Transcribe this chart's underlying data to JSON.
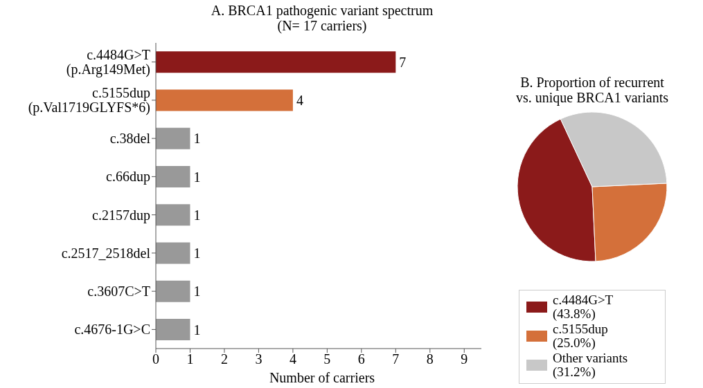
{
  "chart_data": [
    {
      "type": "bar",
      "orientation": "horizontal",
      "title": "A. BRCA1 pathogenic variant spectrum\n(N= 17 carriers)",
      "xlabel": "Number of carriers",
      "categories": [
        "c.4484G>T\n(p.Arg149Met)",
        "c.5155dup\n(p.Val1719GLYFS*6)",
        "c.38del",
        "c.66dup",
        "c.2157dup",
        "c.2517_2518del",
        "c.3607C>T",
        "c.4676-1G>C"
      ],
      "values": [
        7,
        4,
        1,
        1,
        1,
        1,
        1,
        1
      ],
      "colors": [
        "#8b1a1a",
        "#d4703a",
        "#999999",
        "#999999",
        "#999999",
        "#999999",
        "#999999",
        "#999999"
      ],
      "xlim": [
        0,
        9.5
      ],
      "xticks": [
        0,
        1,
        2,
        3,
        4,
        5,
        6,
        7,
        8,
        9
      ],
      "data_labels": true
    },
    {
      "type": "pie",
      "title": "B.  Proportion of recurrent\nvs. unique BRCA1 variants",
      "categories": [
        "c.4484G>T\n(43.8%)",
        "c.5155dup\n(25.0%)",
        "Other variants\n(31.2%)"
      ],
      "values": [
        43.8,
        25.0,
        31.2
      ],
      "colors": [
        "#8b1a1a",
        "#d4703a",
        "#c8c8c8"
      ],
      "legend": "bottom"
    }
  ]
}
